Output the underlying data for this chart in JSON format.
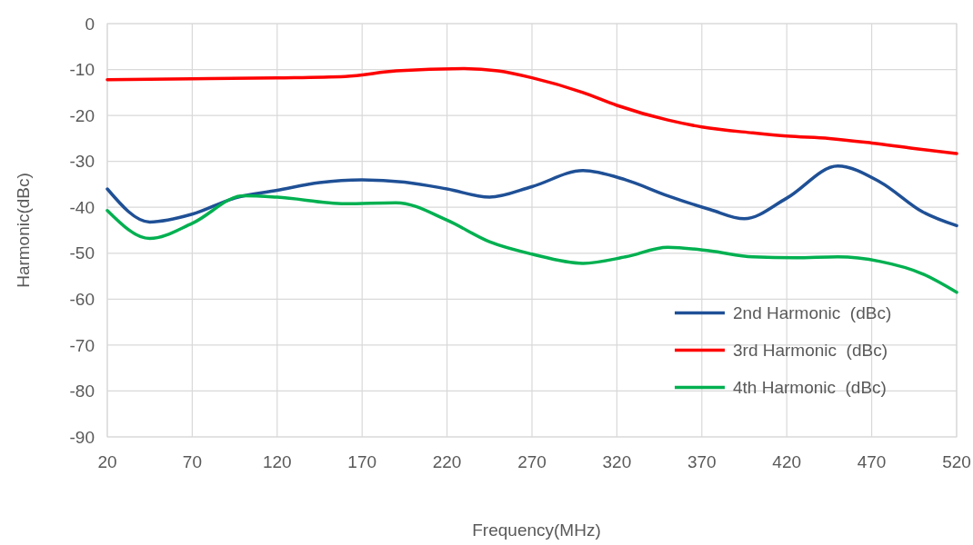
{
  "chart_data": {
    "type": "line",
    "xlabel": "Frequency(MHz)",
    "ylabel": "Harmonic(dBc)",
    "xlim": [
      20,
      520
    ],
    "xticks": [
      20,
      70,
      120,
      170,
      220,
      270,
      320,
      370,
      420,
      470,
      520
    ],
    "ylim": [
      -90,
      0
    ],
    "yticks": [
      -90,
      -80,
      -70,
      -60,
      -50,
      -40,
      -30,
      -20,
      -10,
      0
    ],
    "grid": true,
    "legend": "bottom right",
    "line_style": "solid",
    "series": [
      {
        "name": "2nd Harmonic  (dBc)",
        "color": "#1f5096",
        "x": [
          20,
          45,
          70,
          95,
          120,
          145,
          170,
          195,
          220,
          245,
          270,
          300,
          325,
          350,
          375,
          395,
          420,
          450,
          475,
          500,
          520
        ],
        "values": [
          -36,
          -43.2,
          -41.5,
          -38,
          -36.3,
          -34.6,
          -34,
          -34.5,
          -36,
          -37.8,
          -35.5,
          -32,
          -34,
          -37.5,
          -40.5,
          -42.5,
          -38,
          -31,
          -34.5,
          -41,
          -44
        ]
      },
      {
        "name": "3rd Harmonic  (dBc)",
        "color": "#ff0000",
        "x": [
          20,
          70,
          120,
          160,
          190,
          230,
          250,
          270,
          300,
          320,
          350,
          370,
          400,
          420,
          445,
          470,
          495,
          520
        ],
        "values": [
          -12.2,
          -12,
          -11.8,
          -11.5,
          -10.3,
          -9.8,
          -10.3,
          -11.8,
          -15,
          -17.8,
          -21,
          -22.5,
          -23.8,
          -24.5,
          -25,
          -26,
          -27.2,
          -28.3
        ]
      },
      {
        "name": "4th Harmonic  (dBc)",
        "color": "#00b050",
        "x": [
          20,
          45,
          70,
          100,
          120,
          160,
          190,
          220,
          245,
          270,
          300,
          325,
          350,
          375,
          400,
          425,
          450,
          475,
          500,
          520
        ],
        "values": [
          -40.7,
          -46.8,
          -43.5,
          -37.5,
          -37.8,
          -39.2,
          -39,
          -42.8,
          -47.5,
          -50.2,
          -52.2,
          -50.8,
          -48.7,
          -49.5,
          -50.8,
          -51,
          -50.8,
          -51.8,
          -54.5,
          -58.5
        ]
      }
    ]
  }
}
